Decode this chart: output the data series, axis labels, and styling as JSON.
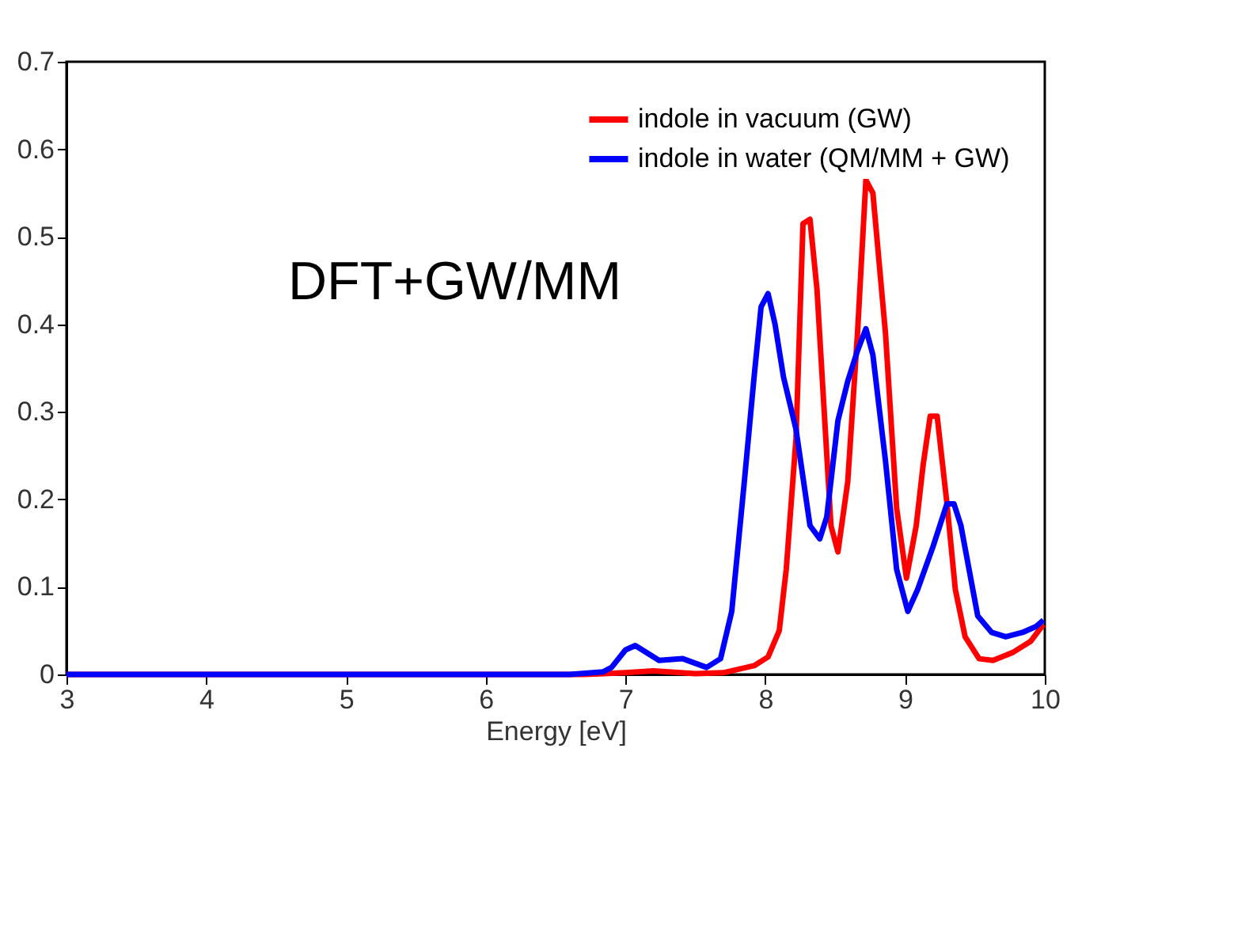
{
  "chart_data": {
    "type": "line",
    "xlabel": "Energy [eV]",
    "xlim": [
      3,
      10
    ],
    "ylim": [
      0,
      0.7
    ],
    "xticks": [
      3,
      4,
      5,
      6,
      7,
      8,
      9,
      10
    ],
    "yticks": [
      0,
      0.1,
      0.2,
      0.3,
      0.4,
      0.5,
      0.6,
      0.7
    ],
    "grid": false,
    "legend": "top right",
    "marker": "none",
    "line_style": "solid",
    "annotations": [
      "DFT+GW/MM"
    ],
    "series": [
      {
        "name": "indole in vacuum (GW)",
        "color": "#ff0000",
        "x": [
          3,
          6.7,
          7.0,
          7.2,
          7.5,
          7.7,
          7.92,
          8.02,
          8.1,
          8.15,
          8.22,
          8.27,
          8.32,
          8.37,
          8.47,
          8.52,
          8.59,
          8.66,
          8.72,
          8.77,
          8.86,
          8.94,
          9.01,
          9.08,
          9.13,
          9.18,
          9.23,
          9.3,
          9.36,
          9.43,
          9.53,
          9.63,
          9.77,
          9.9,
          9.99
        ],
        "values": [
          0,
          0,
          0.002,
          0.004,
          0.001,
          0.002,
          0.01,
          0.02,
          0.05,
          0.12,
          0.27,
          0.515,
          0.52,
          0.44,
          0.17,
          0.14,
          0.22,
          0.39,
          0.565,
          0.55,
          0.39,
          0.19,
          0.11,
          0.17,
          0.24,
          0.295,
          0.295,
          0.195,
          0.097,
          0.043,
          0.018,
          0.016,
          0.025,
          0.038,
          0.057
        ]
      },
      {
        "name": "indole in water (QM/MM + GW)",
        "color": "#0000ff",
        "x": [
          3,
          6.6,
          6.84,
          6.9,
          7.0,
          7.07,
          7.24,
          7.41,
          7.58,
          7.68,
          7.76,
          7.85,
          7.92,
          7.97,
          8.02,
          8.07,
          8.13,
          8.22,
          8.32,
          8.39,
          8.44,
          8.52,
          8.59,
          8.66,
          8.72,
          8.77,
          8.86,
          8.94,
          9.02,
          9.09,
          9.2,
          9.3,
          9.35,
          9.4,
          9.52,
          9.62,
          9.72,
          9.84,
          9.94,
          9.99
        ],
        "values": [
          0,
          0,
          0.003,
          0.008,
          0.028,
          0.033,
          0.016,
          0.018,
          0.008,
          0.018,
          0.072,
          0.22,
          0.34,
          0.42,
          0.435,
          0.4,
          0.34,
          0.28,
          0.17,
          0.155,
          0.18,
          0.29,
          0.335,
          0.37,
          0.395,
          0.365,
          0.244,
          0.12,
          0.072,
          0.097,
          0.146,
          0.195,
          0.195,
          0.17,
          0.067,
          0.048,
          0.043,
          0.048,
          0.055,
          0.062
        ]
      }
    ]
  }
}
